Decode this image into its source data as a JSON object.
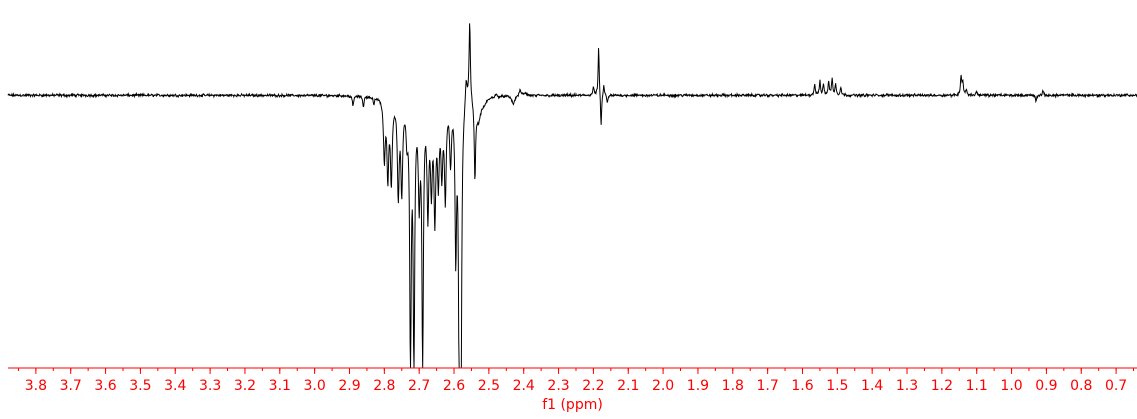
{
  "chart_data": {
    "type": "line",
    "title": "",
    "xlabel": "f1 (ppm)",
    "ylabel": "",
    "x_reversed": true,
    "xlim": [
      3.88,
      0.64
    ],
    "ylim": [
      -1.0,
      0.32
    ],
    "xticks": [
      3.8,
      3.7,
      3.6,
      3.5,
      3.4,
      3.3,
      3.2,
      3.1,
      3.0,
      2.9,
      2.8,
      2.7,
      2.6,
      2.5,
      2.4,
      2.3,
      2.2,
      2.1,
      2.0,
      1.9,
      1.8,
      1.7,
      1.6,
      1.5,
      1.4,
      1.3,
      1.2,
      1.1,
      1.0,
      0.9,
      0.8,
      0.7
    ],
    "xtick_labels": [
      "3.8",
      "3.7",
      "3.6",
      "3.5",
      "3.4",
      "3.3",
      "3.2",
      "3.1",
      "3.0",
      "2.9",
      "2.8",
      "2.7",
      "2.6",
      "2.5",
      "2.4",
      "2.3",
      "2.2",
      "2.1",
      "2.0",
      "1.9",
      "1.8",
      "1.7",
      "1.6",
      "1.5",
      "1.4",
      "1.3",
      "1.2",
      "1.1",
      "1.0",
      "0.9",
      "0.8",
      "0.7"
    ],
    "grid": false,
    "legend": "none",
    "series": [
      {
        "peaks": [
          {
            "x": 2.89,
            "y": -0.04,
            "w": 0.002
          },
          {
            "x": 2.86,
            "y": -0.04,
            "w": 0.002
          },
          {
            "x": 2.83,
            "y": -0.03,
            "w": 0.002
          },
          {
            "x": 2.8,
            "y": -0.22,
            "w": 0.003
          },
          {
            "x": 2.79,
            "y": -0.28,
            "w": 0.003
          },
          {
            "x": 2.78,
            "y": -0.3,
            "w": 0.003
          },
          {
            "x": 2.76,
            "y": -0.35,
            "w": 0.003
          },
          {
            "x": 2.75,
            "y": -0.33,
            "w": 0.003
          },
          {
            "x": 2.735,
            "y": -0.12,
            "w": 0.003
          },
          {
            "x": 2.725,
            "y": -0.97,
            "w": 0.0025
          },
          {
            "x": 2.715,
            "y": -0.97,
            "w": 0.0025
          },
          {
            "x": 2.7,
            "y": -0.34,
            "w": 0.003
          },
          {
            "x": 2.69,
            "y": -0.97,
            "w": 0.0025
          },
          {
            "x": 2.675,
            "y": -0.4,
            "w": 0.003
          },
          {
            "x": 2.665,
            "y": -0.3,
            "w": 0.003
          },
          {
            "x": 2.655,
            "y": -0.42,
            "w": 0.003
          },
          {
            "x": 2.645,
            "y": -0.28,
            "w": 0.003
          },
          {
            "x": 2.635,
            "y": -0.25,
            "w": 0.003
          },
          {
            "x": 2.625,
            "y": -0.35,
            "w": 0.003
          },
          {
            "x": 2.61,
            "y": -0.22,
            "w": 0.003
          },
          {
            "x": 2.595,
            "y": -0.55,
            "w": 0.0025
          },
          {
            "x": 2.585,
            "y": -0.97,
            "w": 0.0025
          },
          {
            "x": 2.58,
            "y": -0.97,
            "w": 0.0025
          },
          {
            "x": 2.565,
            "y": 0.1,
            "w": 0.003
          },
          {
            "x": 2.555,
            "y": 0.3,
            "w": 0.0022
          },
          {
            "x": 2.54,
            "y": -0.28,
            "w": 0.0022
          },
          {
            "x": 2.53,
            "y": -0.08,
            "w": 0.008
          },
          {
            "x": 2.515,
            "y": -0.02,
            "w": 0.01
          },
          {
            "x": 2.48,
            "y": 0.01,
            "w": 0.003
          },
          {
            "x": 2.43,
            "y": -0.03,
            "w": 0.005
          },
          {
            "x": 2.41,
            "y": 0.02,
            "w": 0.004
          },
          {
            "x": 2.395,
            "y": 0.01,
            "w": 0.004
          },
          {
            "x": 2.2,
            "y": 0.03,
            "w": 0.002
          },
          {
            "x": 2.185,
            "y": 0.18,
            "w": 0.0018
          },
          {
            "x": 2.178,
            "y": -0.12,
            "w": 0.0018
          },
          {
            "x": 2.17,
            "y": 0.04,
            "w": 0.002
          },
          {
            "x": 2.16,
            "y": -0.03,
            "w": 0.002
          },
          {
            "x": 1.565,
            "y": 0.04,
            "w": 0.002
          },
          {
            "x": 1.55,
            "y": 0.05,
            "w": 0.002
          },
          {
            "x": 1.54,
            "y": 0.04,
            "w": 0.002
          },
          {
            "x": 1.525,
            "y": 0.05,
            "w": 0.002
          },
          {
            "x": 1.515,
            "y": 0.06,
            "w": 0.002
          },
          {
            "x": 1.505,
            "y": 0.04,
            "w": 0.002
          },
          {
            "x": 1.49,
            "y": 0.03,
            "w": 0.002
          },
          {
            "x": 1.145,
            "y": 0.07,
            "w": 0.002
          },
          {
            "x": 1.14,
            "y": 0.05,
            "w": 0.002
          },
          {
            "x": 1.13,
            "y": 0.02,
            "w": 0.002
          },
          {
            "x": 1.1,
            "y": 0.015,
            "w": 0.002
          },
          {
            "x": 0.93,
            "y": -0.02,
            "w": 0.002
          },
          {
            "x": 0.91,
            "y": 0.015,
            "w": 0.002
          }
        ],
        "noise_amplitude": 0.006,
        "color": "#000000"
      }
    ],
    "axis_color": "#ff0000",
    "trace_color": "#000000"
  }
}
